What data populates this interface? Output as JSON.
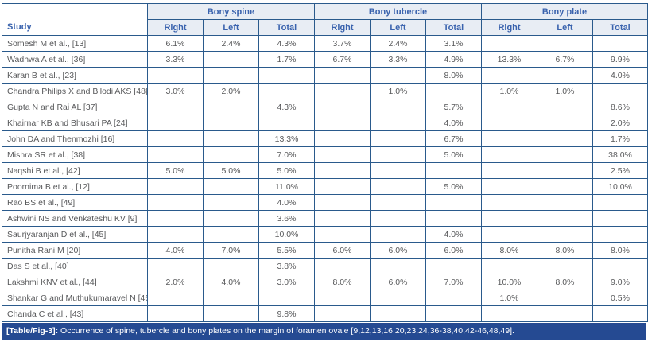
{
  "colors": {
    "border": "#2a5a8c",
    "header_bg": "#e8edf4",
    "header_text": "#3a63ae",
    "caption_bg": "#254a92",
    "caption_text": "#ffffff",
    "cell_text": "#58595b"
  },
  "table": {
    "study_header": "Study",
    "group_headers": [
      "Bony spine",
      "Bony tubercle",
      "Bony plate"
    ],
    "sub_headers": [
      "Right",
      "Left",
      "Total"
    ],
    "rows": [
      {
        "study": "Somesh M et al., [13]",
        "values": [
          "6.1%",
          "2.4%",
          "4.3%",
          "3.7%",
          "2.4%",
          "3.1%",
          "",
          "",
          ""
        ]
      },
      {
        "study": "Wadhwa A et al., [36]",
        "values": [
          "3.3%",
          "",
          "1.7%",
          "6.7%",
          "3.3%",
          "4.9%",
          "13.3%",
          "6.7%",
          "9.9%"
        ]
      },
      {
        "study": "Karan B et al., [23]",
        "values": [
          "",
          "",
          "",
          "",
          "",
          "8.0%",
          "",
          "",
          "4.0%"
        ]
      },
      {
        "study": "Chandra Philips X and Bilodi AKS [48]",
        "values": [
          "3.0%",
          "2.0%",
          "",
          "",
          "1.0%",
          "",
          "1.0%",
          "1.0%",
          ""
        ]
      },
      {
        "study": "Gupta N and Rai AL [37]",
        "values": [
          "",
          "",
          "4.3%",
          "",
          "",
          "5.7%",
          "",
          "",
          "8.6%"
        ]
      },
      {
        "study": "Khairnar KB and Bhusari PA [24]",
        "values": [
          "",
          "",
          "",
          "",
          "",
          "4.0%",
          "",
          "",
          "2.0%"
        ]
      },
      {
        "study": "John DA and Thenmozhi [16]",
        "values": [
          "",
          "",
          "13.3%",
          "",
          "",
          "6.7%",
          "",
          "",
          "1.7%"
        ]
      },
      {
        "study": "Mishra SR et al., [38]",
        "values": [
          "",
          "",
          "7.0%",
          "",
          "",
          "5.0%",
          "",
          "",
          "38.0%"
        ]
      },
      {
        "study": "Naqshi B et al., [42]",
        "values": [
          "5.0%",
          "5.0%",
          "5.0%",
          "",
          "",
          "",
          "",
          "",
          "2.5%"
        ]
      },
      {
        "study": "Poornima B et al., [12]",
        "values": [
          "",
          "",
          "11.0%",
          "",
          "",
          "5.0%",
          "",
          "",
          "10.0%"
        ]
      },
      {
        "study": "Rao BS et al., [49]",
        "values": [
          "",
          "",
          "4.0%",
          "",
          "",
          "",
          "",
          "",
          ""
        ]
      },
      {
        "study": "Ashwini NS and Venkateshu KV [9]",
        "values": [
          "",
          "",
          "3.6%",
          "",
          "",
          "",
          "",
          "",
          ""
        ]
      },
      {
        "study": "Saurjyaranjan D et al., [45]",
        "values": [
          "",
          "",
          "10.0%",
          "",
          "",
          "4.0%",
          "",
          "",
          ""
        ]
      },
      {
        "study": "Punitha Rani M [20]",
        "values": [
          "4.0%",
          "7.0%",
          "5.5%",
          "6.0%",
          "6.0%",
          "6.0%",
          "8.0%",
          "8.0%",
          "8.0%"
        ]
      },
      {
        "study": "Das S et al., [40]",
        "values": [
          "",
          "",
          "3.8%",
          "",
          "",
          "",
          "",
          "",
          ""
        ]
      },
      {
        "study": "Lakshmi KNV et al., [44]",
        "values": [
          "2.0%",
          "4.0%",
          "3.0%",
          "8.0%",
          "6.0%",
          "7.0%",
          "10.0%",
          "8.0%",
          "9.0%"
        ]
      },
      {
        "study": "Shankar G and Muthukumaravel N [46]",
        "values": [
          "",
          "",
          "",
          "",
          "",
          "",
          "1.0%",
          "",
          "0.5%"
        ]
      },
      {
        "study": "Chanda C et al., [43]",
        "values": [
          "",
          "",
          "9.8%",
          "",
          "",
          "",
          "",
          "",
          ""
        ]
      }
    ]
  },
  "caption": {
    "label": "[Table/Fig-3]:",
    "text": " Occurrence of spine, tubercle and bony plates on the margin of foramen ovale [9,12,13,16,20,23,24,36-38,40,42-46,48,49]."
  }
}
